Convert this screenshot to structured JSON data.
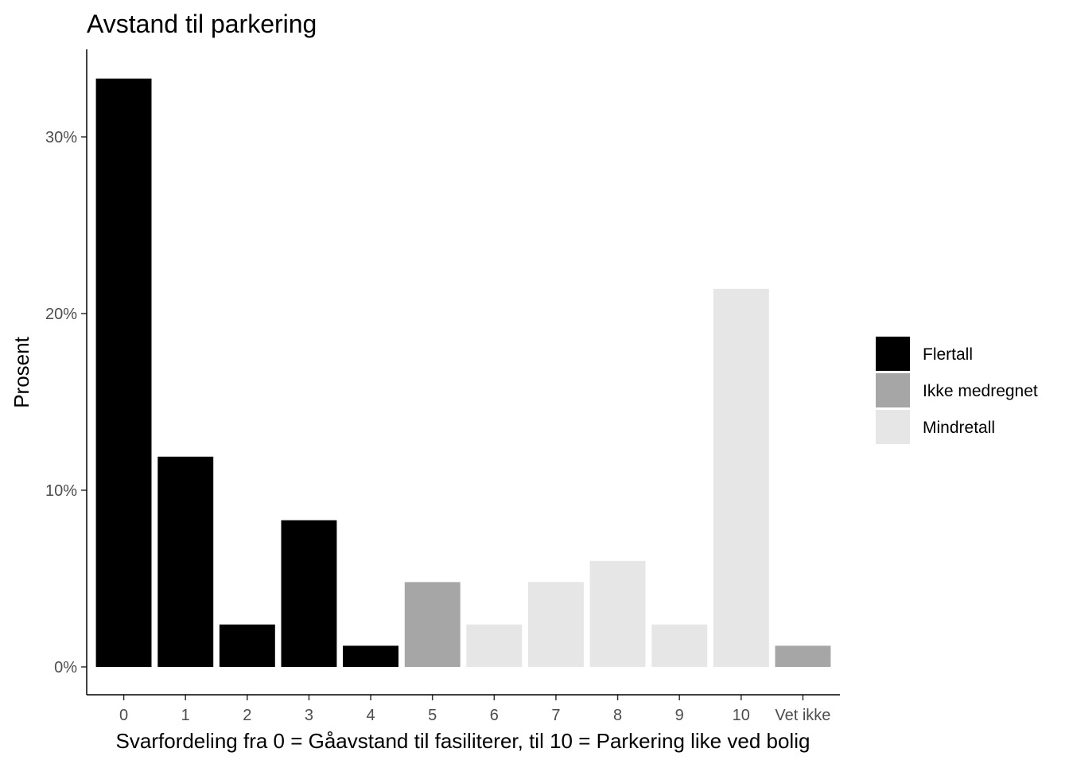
{
  "chart_data": {
    "type": "bar",
    "title": "Avstand til parkering",
    "xlabel": "Svarfordeling fra 0 = Gåavstand til fasiliterer, til 10 = Parkering like ved bolig",
    "ylabel": "Prosent",
    "categories": [
      "0",
      "1",
      "2",
      "3",
      "4",
      "5",
      "6",
      "7",
      "8",
      "9",
      "10",
      "Vet ikke"
    ],
    "values": [
      33.3,
      11.9,
      2.4,
      8.3,
      1.2,
      4.8,
      2.4,
      4.8,
      6.0,
      2.4,
      21.4,
      1.2
    ],
    "groups": [
      "Flertall",
      "Flertall",
      "Flertall",
      "Flertall",
      "Flertall",
      "Ikke medregnet",
      "Mindretall",
      "Mindretall",
      "Mindretall",
      "Mindretall",
      "Mindretall",
      "Ikke medregnet"
    ],
    "ylim": [
      0,
      34.8
    ],
    "yticks": [
      0,
      10,
      20,
      30
    ],
    "ytick_labels": [
      "0%",
      "10%",
      "20%",
      "30%"
    ],
    "legend": {
      "placement": "right",
      "entries": [
        {
          "name": "Flertall",
          "color": "#000000"
        },
        {
          "name": "Ikke medregnet",
          "color": "#a6a6a6"
        },
        {
          "name": "Mindretall",
          "color": "#e6e6e6"
        }
      ]
    },
    "grid": false
  }
}
